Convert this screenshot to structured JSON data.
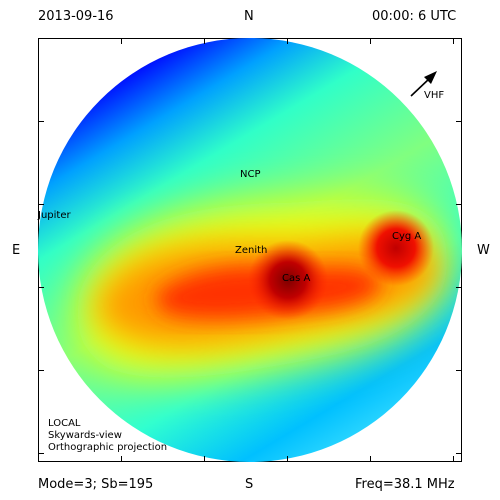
{
  "header": {
    "date": "2013-09-16",
    "north": "N",
    "time": "00:00: 6 UTC"
  },
  "sides": {
    "east": "E",
    "west": "W",
    "south": "S"
  },
  "footer": {
    "mode": "Mode=3; Sb=195",
    "freq": "Freq=38.1 MHz"
  },
  "plot": {
    "arrow_label": "VHF",
    "sources": {
      "ncp": "NCP",
      "jupiter": "Jupiter",
      "zenith": "Zenith",
      "cyg_a": "Cyg A",
      "cas_a": "Cas A"
    },
    "legend": {
      "line1": "LOCAL",
      "line2": "Skywards-view",
      "line3": "Orthographic projection"
    }
  },
  "colors": {
    "background": "#ffffff",
    "sky_low": "#00007f",
    "sky_high": "#7f0000"
  }
}
